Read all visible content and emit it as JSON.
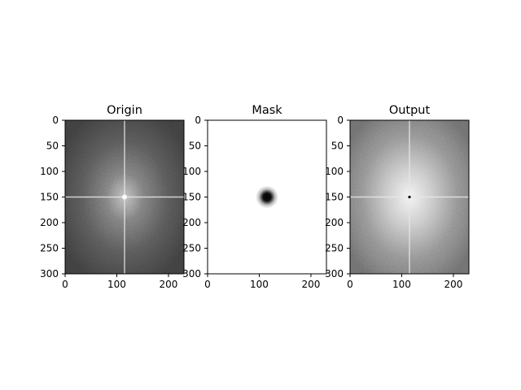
{
  "figure": {
    "background": "#ffffff",
    "panels": [
      {
        "title": "Origin",
        "kind": "fft-spectrum",
        "shade": "dim",
        "xticks": [
          "0",
          "100",
          "200"
        ],
        "yticks": [
          "0",
          "50",
          "100",
          "150",
          "200",
          "250",
          "300"
        ],
        "xlim": [
          0,
          230
        ],
        "ylim": [
          300,
          0
        ]
      },
      {
        "title": "Mask",
        "kind": "gaussian-notch-mask",
        "shade": "white-with-dark-center",
        "xticks": [
          "0",
          "100",
          "200"
        ],
        "yticks": [
          "0",
          "50",
          "100",
          "150",
          "200",
          "250",
          "300"
        ],
        "xlim": [
          0,
          230
        ],
        "ylim": [
          300,
          0
        ]
      },
      {
        "title": "Output",
        "kind": "fft-spectrum",
        "shade": "bright",
        "xticks": [
          "0",
          "100",
          "200"
        ],
        "yticks": [
          "0",
          "50",
          "100",
          "150",
          "200",
          "250",
          "300"
        ],
        "xlim": [
          0,
          230
        ],
        "ylim": [
          300,
          0
        ]
      }
    ]
  }
}
